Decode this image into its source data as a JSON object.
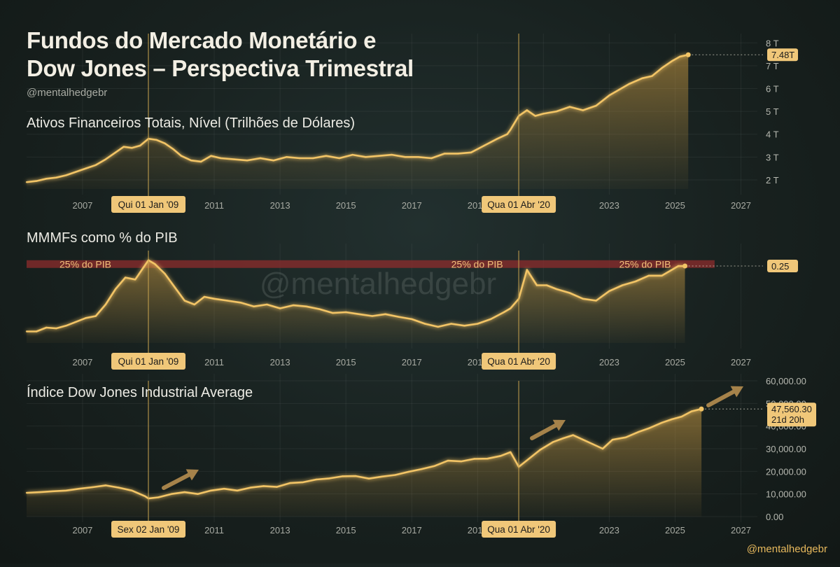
{
  "title_lines": [
    "Fundos do Mercado Monetário e",
    "Dow Jones – Perspectiva Trimestral"
  ],
  "handle": "@mentalhedgebr",
  "watermark": "@mentalhedgebr",
  "footer_handle": "@mentalhedgebr",
  "colors": {
    "line": "#f2c466",
    "marker_bg": "#f0c779",
    "band": "#8d2c2c",
    "vline": "#c7a24f",
    "arrow": "#a5824a"
  },
  "chart_data": [
    {
      "type": "area",
      "title": "Ativos Financeiros Totais, Nível (Trilhões de Dólares)",
      "x_ticks": [
        "2007",
        "2009",
        "2011",
        "2013",
        "2015",
        "2017",
        "2019",
        "2021",
        "2023",
        "2025",
        "2027"
      ],
      "xlim": [
        2005.3,
        2027.5
      ],
      "y_ticks": [
        {
          "v": 2,
          "label": "2 T"
        },
        {
          "v": 3,
          "label": "3 T"
        },
        {
          "v": 4,
          "label": "4 T"
        },
        {
          "v": 5,
          "label": "5 T"
        },
        {
          "v": 6,
          "label": "6 T"
        },
        {
          "v": 7,
          "label": "7 T"
        },
        {
          "v": 8,
          "label": "8 T"
        }
      ],
      "ylim": [
        1.6,
        8.1
      ],
      "x": [
        2005.3,
        2005.6,
        2005.9,
        2006.2,
        2006.5,
        2006.8,
        2007.1,
        2007.4,
        2007.7,
        2008.0,
        2008.25,
        2008.5,
        2008.75,
        2009.0,
        2009.25,
        2009.5,
        2009.75,
        2010.0,
        2010.3,
        2010.6,
        2010.9,
        2011.2,
        2011.6,
        2012.0,
        2012.4,
        2012.8,
        2013.2,
        2013.6,
        2014.0,
        2014.4,
        2014.8,
        2015.2,
        2015.6,
        2016.0,
        2016.4,
        2016.8,
        2017.2,
        2017.6,
        2018.0,
        2018.4,
        2018.8,
        2019.2,
        2019.6,
        2019.9,
        2020.0,
        2020.25,
        2020.5,
        2020.75,
        2021.0,
        2021.4,
        2021.8,
        2022.2,
        2022.6,
        2023.0,
        2023.3,
        2023.6,
        2024.0,
        2024.3,
        2024.6,
        2024.9,
        2025.15,
        2025.4
      ],
      "y": [
        1.9,
        1.95,
        2.05,
        2.1,
        2.2,
        2.35,
        2.5,
        2.65,
        2.9,
        3.2,
        3.45,
        3.4,
        3.5,
        3.8,
        3.75,
        3.6,
        3.35,
        3.05,
        2.85,
        2.8,
        3.05,
        2.95,
        2.9,
        2.85,
        2.95,
        2.85,
        3.0,
        2.95,
        2.95,
        3.05,
        2.95,
        3.1,
        3.0,
        3.05,
        3.1,
        3.0,
        3.0,
        2.95,
        3.15,
        3.15,
        3.2,
        3.5,
        3.8,
        4.0,
        4.2,
        4.8,
        5.05,
        4.8,
        4.9,
        5.0,
        5.2,
        5.05,
        5.25,
        5.7,
        5.95,
        6.2,
        6.45,
        6.55,
        6.9,
        7.2,
        7.4,
        7.48
      ],
      "event_lines": [
        {
          "x": 2009.0,
          "label": "Qui 01 Jan '09"
        },
        {
          "x": 2020.25,
          "label": "Qua 01 Abr '20"
        }
      ],
      "last_value_label": "7.48T"
    },
    {
      "type": "area",
      "title": "MMMFs como % do PIB",
      "x_ticks": [
        "2007",
        "2009",
        "2011",
        "2013",
        "2015",
        "2017",
        "2019",
        "2021",
        "2023",
        "2025",
        "2027"
      ],
      "xlim": [
        2005.3,
        2027.5
      ],
      "ylim": [
        0.05,
        0.29
      ],
      "band": {
        "y0": 0.245,
        "y1": 0.265,
        "label": "25% do PIB",
        "label_x": [
          2006.3,
          2018.2,
          2023.3
        ]
      },
      "x": [
        2005.3,
        2005.6,
        2005.9,
        2006.2,
        2006.5,
        2006.8,
        2007.1,
        2007.4,
        2007.7,
        2008.0,
        2008.3,
        2008.6,
        2008.8,
        2009.0,
        2009.2,
        2009.5,
        2009.8,
        2010.1,
        2010.4,
        2010.7,
        2011.0,
        2011.4,
        2011.8,
        2012.2,
        2012.6,
        2013.0,
        2013.4,
        2013.8,
        2014.2,
        2014.6,
        2015.0,
        2015.4,
        2015.8,
        2016.2,
        2016.6,
        2017.0,
        2017.4,
        2017.8,
        2018.2,
        2018.6,
        2019.0,
        2019.4,
        2019.8,
        2020.0,
        2020.25,
        2020.5,
        2020.8,
        2021.1,
        2021.4,
        2021.8,
        2022.2,
        2022.6,
        2023.0,
        2023.4,
        2023.8,
        2024.2,
        2024.6,
        2024.9,
        2025.1,
        2025.3
      ],
      "y": [
        0.08,
        0.08,
        0.09,
        0.088,
        0.095,
        0.105,
        0.115,
        0.12,
        0.15,
        0.19,
        0.22,
        0.215,
        0.24,
        0.265,
        0.255,
        0.23,
        0.195,
        0.16,
        0.15,
        0.17,
        0.165,
        0.16,
        0.155,
        0.145,
        0.15,
        0.14,
        0.148,
        0.145,
        0.138,
        0.128,
        0.13,
        0.125,
        0.12,
        0.125,
        0.118,
        0.112,
        0.1,
        0.092,
        0.1,
        0.095,
        0.1,
        0.112,
        0.13,
        0.14,
        0.165,
        0.24,
        0.2,
        0.2,
        0.19,
        0.18,
        0.165,
        0.16,
        0.185,
        0.2,
        0.21,
        0.225,
        0.225,
        0.24,
        0.25,
        0.25
      ],
      "event_lines": [
        {
          "x": 2009.0,
          "label": "Qui 01 Jan '09"
        },
        {
          "x": 2020.25,
          "label": "Qua 01 Abr '20"
        }
      ],
      "last_value_label": "0.25"
    },
    {
      "type": "area",
      "title": "Índice Dow Jones Industrial Average",
      "x_ticks": [
        "2007",
        "2009",
        "2011",
        "2013",
        "2015",
        "2017",
        "2019",
        "2021",
        "2023",
        "2025",
        "2027"
      ],
      "xlim": [
        2005.3,
        2027.5
      ],
      "y_ticks": [
        {
          "v": 0,
          "label": "0.00"
        },
        {
          "v": 10000,
          "label": "10,000.00"
        },
        {
          "v": 20000,
          "label": "20,000.00"
        },
        {
          "v": 30000,
          "label": "30,000.00"
        },
        {
          "v": 40000,
          "label": "40,000.00"
        },
        {
          "v": 50000,
          "label": "50,000.00"
        },
        {
          "v": 60000,
          "label": "60,000.00"
        }
      ],
      "ylim": [
        0,
        60000
      ],
      "x": [
        2005.3,
        2005.7,
        2006.1,
        2006.5,
        2006.9,
        2007.3,
        2007.7,
        2008.1,
        2008.5,
        2008.9,
        2009.0,
        2009.3,
        2009.7,
        2010.1,
        2010.5,
        2010.9,
        2011.3,
        2011.7,
        2012.1,
        2012.5,
        2012.9,
        2013.3,
        2013.7,
        2014.1,
        2014.5,
        2014.9,
        2015.3,
        2015.7,
        2016.1,
        2016.5,
        2016.9,
        2017.3,
        2017.7,
        2018.1,
        2018.5,
        2018.9,
        2019.3,
        2019.7,
        2020.0,
        2020.25,
        2020.6,
        2020.9,
        2021.3,
        2021.6,
        2021.9,
        2022.2,
        2022.5,
        2022.8,
        2023.1,
        2023.5,
        2023.9,
        2024.2,
        2024.6,
        2024.9,
        2025.2,
        2025.5,
        2025.8
      ],
      "y": [
        10500,
        10800,
        11200,
        11500,
        12300,
        13000,
        13800,
        12800,
        11500,
        9000,
        8000,
        8500,
        10000,
        10800,
        10000,
        11500,
        12300,
        11500,
        12800,
        13500,
        13100,
        14800,
        15200,
        16400,
        16900,
        17800,
        17900,
        16800,
        17700,
        18400,
        19800,
        21000,
        22400,
        24700,
        24400,
        25500,
        25600,
        26800,
        28500,
        22000,
        26000,
        29500,
        33000,
        34600,
        36000,
        34000,
        32000,
        30000,
        34000,
        35000,
        37500,
        39000,
        41500,
        43000,
        44200,
        46500,
        47560
      ],
      "event_lines": [
        {
          "x": 2009.0,
          "label": "Sex 02 Jan '09"
        },
        {
          "x": 2020.25,
          "label": "Qua 01 Abr '20"
        }
      ],
      "last_value_label": "47,560.30",
      "last_value_sublabel": "21d 20h"
    }
  ]
}
